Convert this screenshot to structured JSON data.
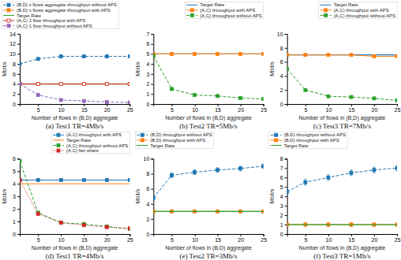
{
  "chart_data": [
    {
      "type": "line",
      "title": "(a) Test1 TR=4Mb/s",
      "x_label": "Number of flows in (B,D) aggregate",
      "y_label": "Mbit/s",
      "x": [
        1,
        5,
        10,
        15,
        20,
        25
      ],
      "xlim": [
        1,
        25
      ],
      "xticks": [
        5,
        10,
        15,
        20,
        25
      ],
      "ylim": [
        0,
        14
      ],
      "yticks": [
        0,
        2,
        4,
        6,
        8,
        10,
        12,
        14
      ],
      "grid": false,
      "legend": "upper left",
      "series": [
        {
          "name": "(B,D) x flows aggregate throughput without APS",
          "type": "line",
          "values": [
            8.0,
            9.0,
            9.5,
            9.5,
            9.5,
            9.5
          ],
          "marker": "square",
          "line_style": "dashed"
        },
        {
          "name": "(B,D) x flows aggregate throughput with APS",
          "type": "line",
          "values": [
            4.0,
            4.0,
            4.0,
            4.0,
            4.0,
            4.0
          ],
          "marker": "square",
          "line_style": "solid"
        },
        {
          "name": "Target Rate",
          "type": "hline",
          "value": 4.0,
          "line_style": "solid"
        },
        {
          "name": "(A,C) 1 flow throughput with APS",
          "type": "line",
          "values": [
            4.0,
            4.0,
            4.0,
            4.0,
            4.0,
            4.0
          ],
          "marker": "square-open",
          "line_style": "solid"
        },
        {
          "name": "(A,C) 1 flow throughput without APS",
          "type": "line",
          "values": [
            4.0,
            1.8,
            0.8,
            0.6,
            0.4,
            0.3
          ],
          "marker": "square",
          "line_style": "dashed"
        }
      ]
    },
    {
      "type": "line",
      "title": "(b) Test2 TR=5Mb/s",
      "x_label": "Number of flows in (B,D) aggregate",
      "y_label": "Mbit/s",
      "x": [
        1,
        5,
        10,
        15,
        20,
        25
      ],
      "xlim": [
        1,
        25
      ],
      "xticks": [
        5,
        10,
        15,
        20,
        25
      ],
      "ylim": [
        0,
        7
      ],
      "yticks": [
        0,
        1,
        2,
        3,
        4,
        5,
        6,
        7
      ],
      "grid": false,
      "legend": "upper right",
      "series": [
        {
          "name": "Target Rate",
          "type": "hline",
          "value": 5.0,
          "line_style": "solid"
        },
        {
          "name": "(A,C) throughput with APS",
          "type": "line",
          "values": [
            5.0,
            5.0,
            5.0,
            5.0,
            5.0,
            5.0
          ],
          "marker": "square",
          "line_style": "solid"
        },
        {
          "name": "(A,C) throughput without APS",
          "type": "line",
          "values": [
            4.8,
            1.5,
            0.9,
            0.8,
            0.6,
            0.5
          ],
          "marker": "square",
          "line_style": "dashed"
        }
      ]
    },
    {
      "type": "line",
      "title": "(c) Test3 TR=7Mb/s",
      "x_label": "Number of flows in (B,D) aggregate",
      "y_label": "Mbit/s",
      "x": [
        1,
        5,
        10,
        15,
        20,
        25
      ],
      "xlim": [
        1,
        25
      ],
      "xticks": [
        5,
        10,
        15,
        20,
        25
      ],
      "ylim": [
        0,
        10
      ],
      "yticks": [
        0,
        2,
        4,
        6,
        8,
        10
      ],
      "grid": false,
      "legend": "upper right",
      "series": [
        {
          "name": "Target Rate",
          "type": "hline",
          "value": 7.0,
          "line_style": "solid"
        },
        {
          "name": "(A,C) throughput with APS",
          "type": "line",
          "values": [
            7.0,
            7.0,
            7.0,
            7.0,
            6.8,
            6.8
          ],
          "marker": "square",
          "line_style": "solid"
        },
        {
          "name": "(A,C) throughput without APS",
          "type": "line",
          "values": [
            5.0,
            2.0,
            1.1,
            1.0,
            0.8,
            0.5
          ],
          "marker": "square",
          "line_style": "dashed"
        }
      ]
    },
    {
      "type": "line",
      "title": "(d) Test1 TR=4Mb/s",
      "x_label": "Number of flows in (B,D) aggregate",
      "y_label": "Mbit/s",
      "x": [
        1,
        5,
        10,
        15,
        20,
        25
      ],
      "xlim": [
        1,
        25
      ],
      "xticks": [
        5,
        10,
        15,
        20,
        25
      ],
      "ylim": [
        0,
        6
      ],
      "yticks": [
        0,
        1,
        2,
        3,
        4,
        5,
        6
      ],
      "grid": false,
      "legend": "upper right",
      "series": [
        {
          "name": "(A,C) throughput with APS",
          "type": "line",
          "values": [
            4.3,
            4.3,
            4.3,
            4.3,
            4.3,
            4.3
          ],
          "marker": "square",
          "line_style": "solid"
        },
        {
          "name": "Target Rate",
          "type": "hline",
          "value": 4.0,
          "line_style": "solid"
        },
        {
          "name": "(A,C) throughput without APS",
          "type": "line",
          "values": [
            5.8,
            1.7,
            0.9,
            0.8,
            0.6,
            0.4
          ],
          "marker": "square",
          "line_style": "dashed"
        },
        {
          "name": "(A,C) fair-share",
          "type": "line",
          "values": [
            4.3,
            1.6,
            0.9,
            0.7,
            0.55,
            0.45
          ],
          "marker": "square",
          "line_style": "dotted"
        }
      ]
    },
    {
      "type": "line",
      "title": "(e) Test2 TR=3Mb/s",
      "x_label": "Number of flows in (B,D) aggregate",
      "y_label": "Mbit/s",
      "x": [
        1,
        5,
        10,
        15,
        20,
        25
      ],
      "xlim": [
        1,
        25
      ],
      "xticks": [
        5,
        10,
        15,
        20,
        25
      ],
      "ylim": [
        0,
        10
      ],
      "yticks": [
        0,
        2,
        4,
        6,
        8,
        10
      ],
      "grid": false,
      "legend": "upper left",
      "series": [
        {
          "name": "(B,D) throughput without APS",
          "type": "line",
          "values": [
            4.8,
            7.8,
            8.2,
            8.5,
            8.7,
            9.0
          ],
          "errors": [
            0,
            0.3,
            0.3,
            0.3,
            0.3,
            0.3
          ],
          "marker": "square",
          "line_style": "dashed"
        },
        {
          "name": "(B,D) throughput with APS",
          "type": "line",
          "values": [
            3.0,
            3.0,
            3.0,
            3.0,
            3.0,
            3.0
          ],
          "errors": [
            0,
            0.2,
            0.2,
            0.2,
            0.2,
            0.2
          ],
          "marker": "square",
          "line_style": "solid"
        },
        {
          "name": "Target Rate",
          "type": "hline",
          "value": 3.0,
          "line_style": "solid"
        }
      ]
    },
    {
      "type": "line",
      "title": "(f) Test3 TR=1Mb/s",
      "x_label": "Number of flows in (B,D) aggregate",
      "y_label": "Mbit/s",
      "x": [
        1,
        5,
        10,
        15,
        20,
        25
      ],
      "xlim": [
        1,
        25
      ],
      "xticks": [
        5,
        10,
        15,
        20,
        25
      ],
      "ylim": [
        0,
        8
      ],
      "yticks": [
        0,
        1,
        2,
        3,
        4,
        5,
        6,
        7,
        8
      ],
      "grid": false,
      "legend": "upper left",
      "series": [
        {
          "name": "(B,D) throughput without APS",
          "type": "line",
          "values": [
            4.5,
            5.5,
            6.0,
            6.5,
            6.8,
            7.0
          ],
          "errors": [
            0,
            0.3,
            0.3,
            0.3,
            0.3,
            0.3
          ],
          "marker": "square",
          "line_style": "dashed"
        },
        {
          "name": "(B,D) throughput with APS",
          "type": "line",
          "values": [
            1.0,
            1.0,
            1.0,
            1.0,
            1.0,
            1.0
          ],
          "errors": [
            0,
            0.2,
            0.2,
            0.2,
            0.2,
            0.2
          ],
          "marker": "square",
          "line_style": "solid"
        },
        {
          "name": "Target Rate",
          "type": "hline",
          "value": 1.0,
          "line_style": "solid"
        }
      ]
    }
  ]
}
